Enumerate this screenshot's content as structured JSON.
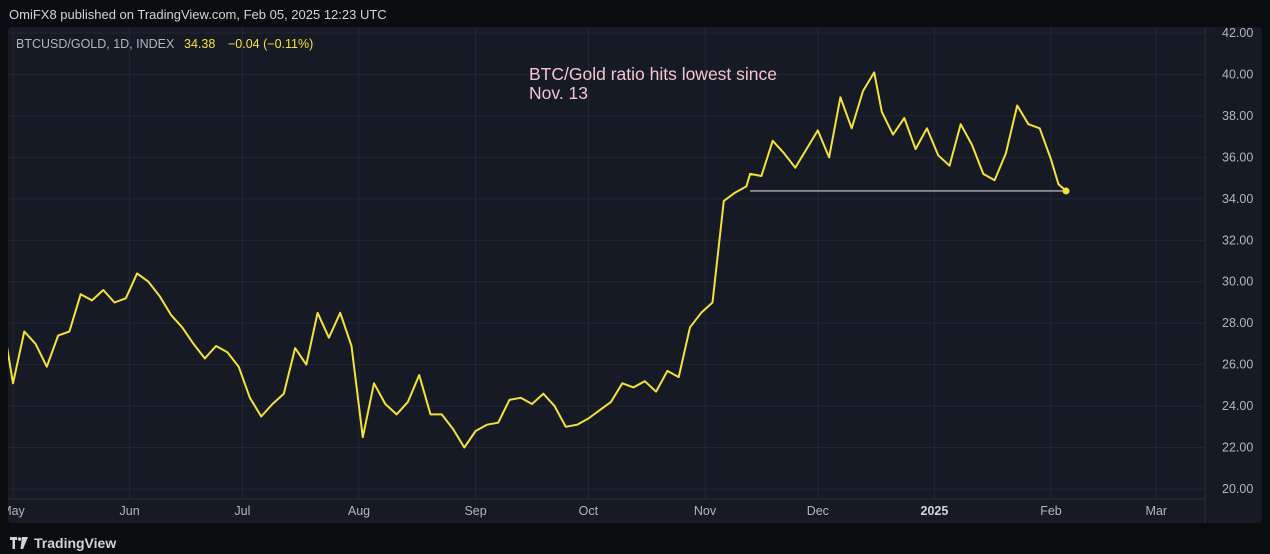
{
  "header": {
    "publisher_line": "OmiFX8 published on TradingView.com, Feb 05, 2025 12:23 UTC"
  },
  "legend": {
    "symbol": "BTCUSD/GOLD, 1D, INDEX",
    "last": "34.38",
    "change": "−0.04 (−0.11%)"
  },
  "annotation": {
    "line1": "BTC/Gold ratio hits lowest since",
    "line2": "Nov. 13"
  },
  "footer": {
    "brand": "TradingView"
  },
  "colors": {
    "series": "#f5e13b",
    "annotation": "#f6c4d0",
    "grid": "#232734",
    "axis_text": "#b2b5be",
    "support_line": "#d1d4dc"
  },
  "chart_data": {
    "type": "line",
    "title": "",
    "xlabel": "",
    "ylabel": "",
    "ylim": [
      20,
      42
    ],
    "y_ticks": [
      "20.00",
      "22.00",
      "24.00",
      "26.00",
      "28.00",
      "30.00",
      "32.00",
      "34.00",
      "36.00",
      "38.00",
      "40.00",
      "42.00"
    ],
    "x_ticks": [
      "May",
      "Jun",
      "Jul",
      "Aug",
      "Sep",
      "Oct",
      "Nov",
      "Dec",
      "2025",
      "Feb",
      "Mar"
    ],
    "x": [
      "2024-04-29",
      "2024-05-01",
      "2024-05-04",
      "2024-05-07",
      "2024-05-10",
      "2024-05-13",
      "2024-05-16",
      "2024-05-19",
      "2024-05-22",
      "2024-05-25",
      "2024-05-28",
      "2024-05-31",
      "2024-06-03",
      "2024-06-06",
      "2024-06-09",
      "2024-06-12",
      "2024-06-15",
      "2024-06-18",
      "2024-06-21",
      "2024-06-24",
      "2024-06-27",
      "2024-06-30",
      "2024-07-03",
      "2024-07-06",
      "2024-07-09",
      "2024-07-12",
      "2024-07-15",
      "2024-07-18",
      "2024-07-21",
      "2024-07-24",
      "2024-07-27",
      "2024-07-30",
      "2024-08-02",
      "2024-08-05",
      "2024-08-08",
      "2024-08-11",
      "2024-08-14",
      "2024-08-17",
      "2024-08-20",
      "2024-08-23",
      "2024-08-26",
      "2024-08-29",
      "2024-09-01",
      "2024-09-04",
      "2024-09-07",
      "2024-09-10",
      "2024-09-13",
      "2024-09-16",
      "2024-09-19",
      "2024-09-22",
      "2024-09-25",
      "2024-09-28",
      "2024-10-01",
      "2024-10-04",
      "2024-10-07",
      "2024-10-10",
      "2024-10-13",
      "2024-10-16",
      "2024-10-19",
      "2024-10-22",
      "2024-10-25",
      "2024-10-28",
      "2024-10-31",
      "2024-11-03",
      "2024-11-06",
      "2024-11-09",
      "2024-11-12",
      "2024-11-13",
      "2024-11-16",
      "2024-11-19",
      "2024-11-22",
      "2024-11-25",
      "2024-11-28",
      "2024-12-01",
      "2024-12-04",
      "2024-12-07",
      "2024-12-10",
      "2024-12-13",
      "2024-12-16",
      "2024-12-18",
      "2024-12-21",
      "2024-12-24",
      "2024-12-27",
      "2024-12-30",
      "2025-01-02",
      "2025-01-05",
      "2025-01-08",
      "2025-01-11",
      "2025-01-14",
      "2025-01-17",
      "2025-01-20",
      "2025-01-23",
      "2025-01-26",
      "2025-01-29",
      "2025-02-01",
      "2025-02-03",
      "2025-02-05"
    ],
    "series": [
      {
        "values": [
          27.3,
          25.1,
          27.6,
          27.0,
          25.9,
          27.4,
          27.6,
          29.4,
          29.1,
          29.6,
          29.0,
          29.2,
          30.4,
          30.0,
          29.3,
          28.4,
          27.8,
          27.0,
          26.3,
          26.9,
          26.6,
          25.9,
          24.4,
          23.5,
          24.1,
          24.6,
          26.8,
          26.0,
          28.5,
          27.3,
          28.5,
          26.9,
          22.5,
          25.1,
          24.1,
          23.6,
          24.2,
          25.5,
          23.6,
          23.6,
          22.9,
          22.0,
          22.8,
          23.1,
          23.2,
          24.3,
          24.4,
          24.1,
          24.6,
          24.0,
          23.0,
          23.1,
          23.4,
          23.8,
          24.2,
          25.1,
          24.9,
          25.2,
          24.7,
          25.7,
          25.4,
          27.8,
          28.5,
          29.0,
          33.9,
          34.3,
          34.6,
          35.2,
          35.1,
          36.8,
          36.2,
          35.5,
          36.4,
          37.3,
          36.0,
          38.9,
          37.4,
          39.2,
          40.1,
          38.2,
          37.1,
          37.9,
          36.4,
          37.4,
          36.1,
          35.6,
          37.6,
          36.6,
          35.2,
          34.9,
          36.2,
          38.5,
          37.6,
          37.4,
          35.9,
          34.7,
          34.38
        ]
      }
    ],
    "last_value": 34.38,
    "support_level": 34.38,
    "support_from": "2024-11-13"
  }
}
